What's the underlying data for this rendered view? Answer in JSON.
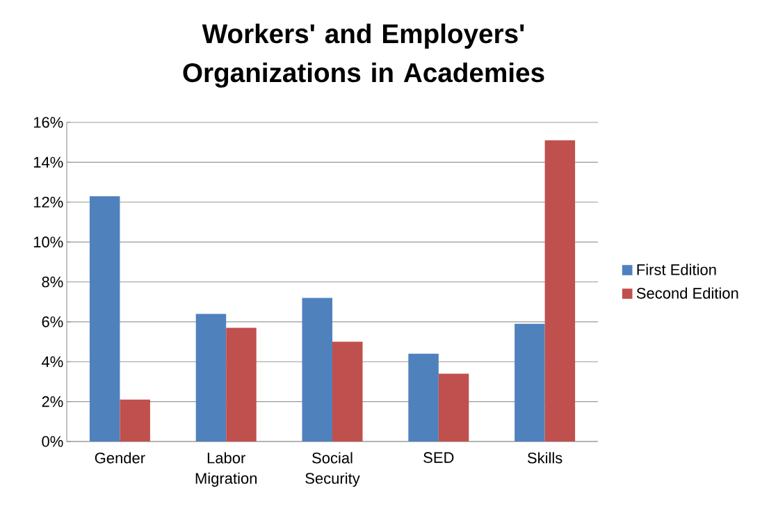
{
  "chart_data": {
    "type": "bar",
    "title": "Workers' and Employers' Organizations in Academies",
    "categories": [
      "Gender",
      "Labor Migration",
      "Social Security",
      "SED",
      "Skills"
    ],
    "series": [
      {
        "name": "First Edition",
        "color": "#4f81bd",
        "values": [
          12.3,
          6.4,
          7.2,
          4.4,
          5.9
        ]
      },
      {
        "name": "Second Edition",
        "color": "#c0504d",
        "values": [
          2.1,
          5.7,
          5.0,
          3.4,
          15.1
        ]
      }
    ],
    "ylim": [
      0,
      16
    ],
    "yticks": [
      {
        "value": 0,
        "label": "0%"
      },
      {
        "value": 2,
        "label": "2%"
      },
      {
        "value": 4,
        "label": "4%"
      },
      {
        "value": 6,
        "label": "6%"
      },
      {
        "value": 8,
        "label": "8%"
      },
      {
        "value": 10,
        "label": "10%"
      },
      {
        "value": 12,
        "label": "12%"
      },
      {
        "value": 14,
        "label": "14%"
      },
      {
        "value": 16,
        "label": "16%"
      }
    ],
    "grid": "y",
    "legend": "right"
  }
}
